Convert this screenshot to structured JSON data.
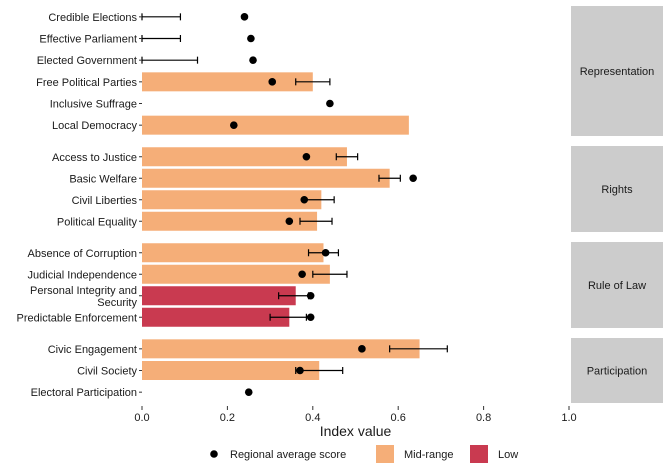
{
  "chart_data": {
    "type": "bar",
    "orientation": "horizontal",
    "xlabel": "Index value",
    "xlim": [
      0,
      1
    ],
    "xticks": [
      "0.0",
      "0.2",
      "0.4",
      "0.6",
      "0.8",
      "1.0"
    ],
    "grid": false,
    "legend_position": "bottom",
    "legend": [
      {
        "key": "dot",
        "label": "Regional average score"
      },
      {
        "key": "mid",
        "label": "Mid-range",
        "color": "#f5ae78"
      },
      {
        "key": "low",
        "label": "Low",
        "color": "#c93a50"
      }
    ],
    "colors": {
      "mid": "#f5ae78",
      "low": "#c93a50",
      "dot": "#000000",
      "panel_strip": "#cccccc"
    },
    "panels": [
      {
        "name": "Representation",
        "rows": [
          {
            "label": [
              "Credible Elections"
            ],
            "value": null,
            "category": null,
            "error": [
              0.0,
              0.09
            ],
            "regional_avg": 0.24
          },
          {
            "label": [
              "Effective Parliament"
            ],
            "value": null,
            "category": null,
            "error": [
              0.0,
              0.09
            ],
            "regional_avg": 0.255
          },
          {
            "label": [
              "Elected Government"
            ],
            "value": null,
            "category": null,
            "error": [
              0.0,
              0.13
            ],
            "regional_avg": 0.26
          },
          {
            "label": [
              "Free Political Parties"
            ],
            "value": 0.4,
            "category": "mid",
            "error": [
              0.36,
              0.44
            ],
            "regional_avg": 0.305
          },
          {
            "label": [
              "Inclusive Suffrage"
            ],
            "value": null,
            "category": null,
            "error": null,
            "regional_avg": 0.44
          },
          {
            "label": [
              "Local Democracy"
            ],
            "value": 0.625,
            "category": "mid",
            "error": null,
            "regional_avg": 0.215
          }
        ]
      },
      {
        "name": "Rights",
        "rows": [
          {
            "label": [
              "Access to Justice"
            ],
            "value": 0.48,
            "category": "mid",
            "error": [
              0.455,
              0.505
            ],
            "regional_avg": 0.385
          },
          {
            "label": [
              "Basic Welfare"
            ],
            "value": 0.58,
            "category": "mid",
            "error": [
              0.555,
              0.605
            ],
            "regional_avg": 0.635
          },
          {
            "label": [
              "Civil Liberties"
            ],
            "value": 0.42,
            "category": "mid",
            "error": [
              0.38,
              0.45
            ],
            "regional_avg": 0.38
          },
          {
            "label": [
              "Political Equality"
            ],
            "value": 0.41,
            "category": "mid",
            "error": [
              0.37,
              0.445
            ],
            "regional_avg": 0.345
          }
        ]
      },
      {
        "name": "Rule of Law",
        "rows": [
          {
            "label": [
              "Absence of Corruption"
            ],
            "value": 0.425,
            "category": "mid",
            "error": [
              0.39,
              0.46
            ],
            "regional_avg": 0.43
          },
          {
            "label": [
              "Judicial Independence"
            ],
            "value": 0.44,
            "category": "mid",
            "error": [
              0.4,
              0.48
            ],
            "regional_avg": 0.375
          },
          {
            "label": [
              "Personal Integrity and",
              "Security"
            ],
            "value": 0.36,
            "category": "low",
            "error": [
              0.32,
              0.39
            ],
            "regional_avg": 0.395
          },
          {
            "label": [
              "Predictable Enforcement"
            ],
            "value": 0.345,
            "category": "low",
            "error": [
              0.3,
              0.385
            ],
            "regional_avg": 0.395
          }
        ]
      },
      {
        "name": "Participation",
        "rows": [
          {
            "label": [
              "Civic Engagement"
            ],
            "value": 0.65,
            "category": "mid",
            "error": [
              0.58,
              0.715
            ],
            "regional_avg": 0.515
          },
          {
            "label": [
              "Civil Society"
            ],
            "value": 0.415,
            "category": "mid",
            "error": [
              0.36,
              0.47
            ],
            "regional_avg": 0.37
          },
          {
            "label": [
              "Electoral Participation"
            ],
            "value": null,
            "category": null,
            "error": null,
            "regional_avg": 0.25
          }
        ]
      }
    ]
  }
}
